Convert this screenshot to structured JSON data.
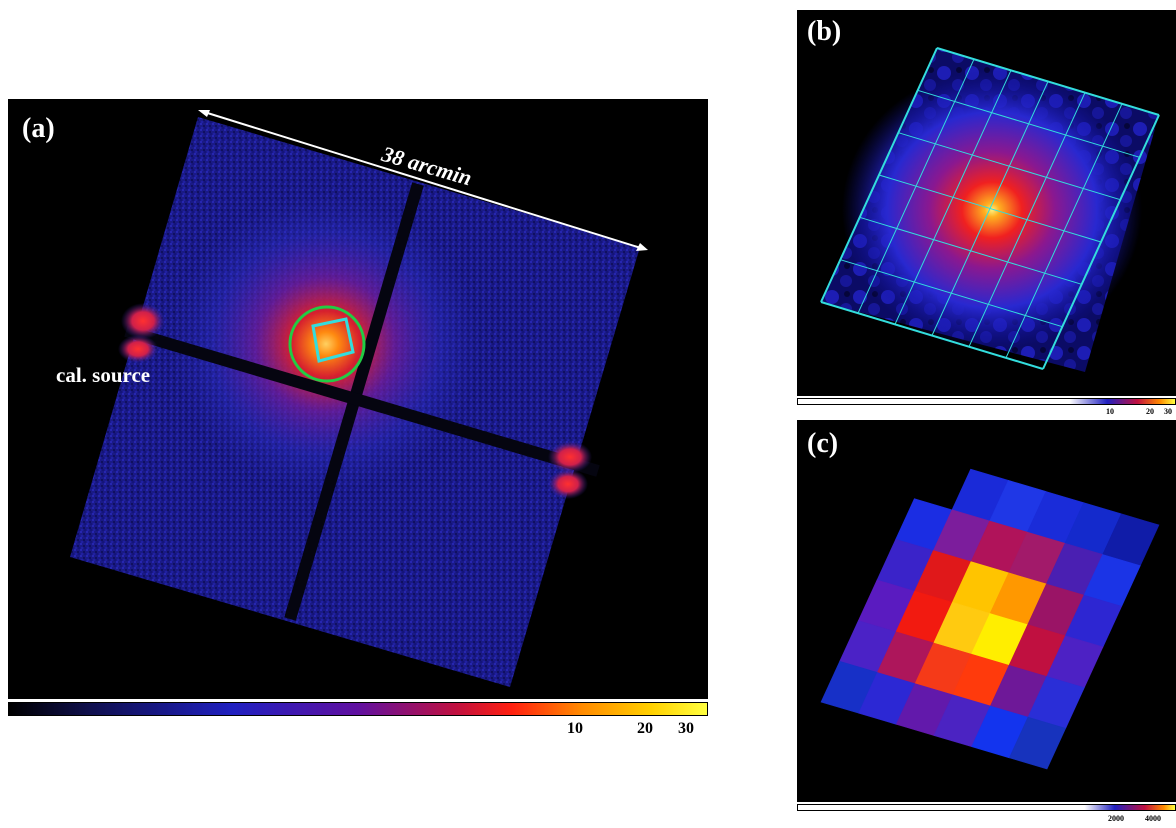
{
  "panels": {
    "a": {
      "label": "(a)",
      "scale_label": "38 arcmin",
      "cal_label": "cal. source",
      "colorbar_ticks": [
        "10",
        "20",
        "30"
      ]
    },
    "b": {
      "label": "(b)",
      "colorbar_ticks": [
        "10",
        "20",
        "30"
      ]
    },
    "c": {
      "label": "(c)",
      "colorbar_ticks": [
        "2000",
        "4000"
      ]
    }
  },
  "colors": {
    "detector_blue": "#1a1a8c",
    "chip_gap": "#050510",
    "source_ring": "#22cc44",
    "grid_cyan": "#33dddd",
    "scale_arrow": "#ffffff"
  },
  "grid_c": [
    [
      null,
      "#1a2ad8",
      "#1f37e6",
      "#1a2cd9",
      "#142acc",
      "#101ca8"
    ],
    [
      "#1b2de3",
      "#7c1d9c",
      "#b0135a",
      "#a21a6a",
      "#4a1fb2",
      "#1b34e6"
    ],
    [
      "#3a23c9",
      "#e0181a",
      "#ffc400",
      "#ff9800",
      "#9a1466",
      "#2d26d2"
    ],
    [
      "#5a1bc0",
      "#f21a10",
      "#ffca10",
      "#ffee00",
      "#c01040",
      "#4d21c4"
    ],
    [
      "#4b22c6",
      "#ad165b",
      "#f53a18",
      "#ff3a0c",
      "#6e1898",
      "#2a2ed7"
    ],
    [
      "#1730c7",
      "#2c28d4",
      "#6219ab",
      "#4b23c2",
      "#1334ee",
      "#1733bd"
    ]
  ]
}
